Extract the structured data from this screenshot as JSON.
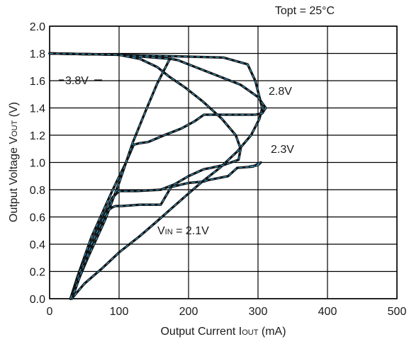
{
  "chart_data": {
    "type": "line",
    "condition": "Topt = 25°C",
    "xlabel_main": "Output Current I",
    "xlabel_sub": "OUT",
    "xlabel_unit": " (mA)",
    "ylabel_main": "Output Voltage V",
    "ylabel_sub": "OUT",
    "ylabel_unit": " (V)",
    "xlim": [
      0,
      500
    ],
    "ylim": [
      0.0,
      2.0
    ],
    "xticks": [
      "0",
      "100",
      "200",
      "300",
      "400",
      "500"
    ],
    "yticks": [
      "0.0",
      "0.2",
      "0.4",
      "0.6",
      "0.8",
      "1.0",
      "1.2",
      "1.4",
      "1.6",
      "1.8",
      "2.0"
    ],
    "xtick_values": [
      0,
      100,
      200,
      300,
      400,
      500
    ],
    "ytick_values": [
      0.0,
      0.2,
      0.4,
      0.6,
      0.8,
      1.0,
      1.2,
      1.4,
      1.6,
      1.8,
      2.0
    ],
    "grid": true,
    "labels": {
      "v38": "3.8V",
      "v28": "2.8V",
      "v23": "2.3V",
      "vin_main": "V",
      "vin_sub": "IN",
      "vin_value": " = 2.1V"
    },
    "series": [
      {
        "x": [
          0,
          100,
          250,
          285,
          296,
          302,
          306,
          302,
          290,
          270,
          245,
          220,
          195,
          175,
          155,
          130,
          100,
          75,
          50,
          35,
          32
        ],
        "y": [
          1.8,
          1.79,
          1.77,
          1.72,
          1.6,
          1.48,
          1.4,
          1.32,
          1.2,
          1.08,
          0.96,
          0.86,
          0.75,
          0.66,
          0.57,
          0.46,
          0.34,
          0.22,
          0.11,
          0.02,
          0.0
        ]
      },
      {
        "x": [
          0,
          100,
          175,
          185,
          210,
          240,
          275,
          300,
          311,
          306,
          296,
          222,
          208,
          190,
          165,
          142,
          128,
          121,
          110,
          90,
          60,
          40,
          30
        ],
        "y": [
          1.8,
          1.79,
          1.76,
          1.75,
          1.7,
          1.64,
          1.57,
          1.48,
          1.4,
          1.36,
          1.35,
          1.35,
          1.3,
          1.25,
          1.2,
          1.15,
          1.14,
          1.13,
          1.0,
          0.79,
          0.45,
          0.16,
          0.0
        ]
      },
      {
        "x": [
          0,
          100,
          130,
          155,
          172,
          195,
          220,
          248,
          268,
          275,
          272,
          250,
          232,
          222,
          200,
          180,
          160,
          125,
          108,
          100,
          90,
          70,
          45,
          30
        ],
        "y": [
          1.8,
          1.79,
          1.76,
          1.7,
          1.63,
          1.55,
          1.45,
          1.32,
          1.2,
          1.1,
          1.02,
          0.98,
          0.96,
          0.95,
          0.9,
          0.84,
          0.8,
          0.79,
          0.79,
          0.79,
          0.74,
          0.52,
          0.22,
          0.0
        ]
      },
      {
        "x": [
          30,
          55,
          80,
          100,
          120,
          140,
          155,
          170,
          172,
          174
        ],
        "y": [
          0.0,
          0.3,
          0.58,
          0.85,
          1.15,
          1.4,
          1.58,
          1.73,
          1.75,
          1.76
        ]
      },
      {
        "x": [
          288,
          300,
          304,
          293,
          270,
          257,
          228,
          222,
          200,
          175,
          160,
          130,
          104,
          95,
          90,
          82,
          60,
          35
        ],
        "y": [
          0.97,
          0.98,
          1.0,
          0.97,
          0.96,
          0.9,
          0.87,
          0.86,
          0.85,
          0.82,
          0.69,
          0.69,
          0.68,
          0.68,
          0.67,
          0.64,
          0.4,
          0.04
        ]
      }
    ]
  }
}
